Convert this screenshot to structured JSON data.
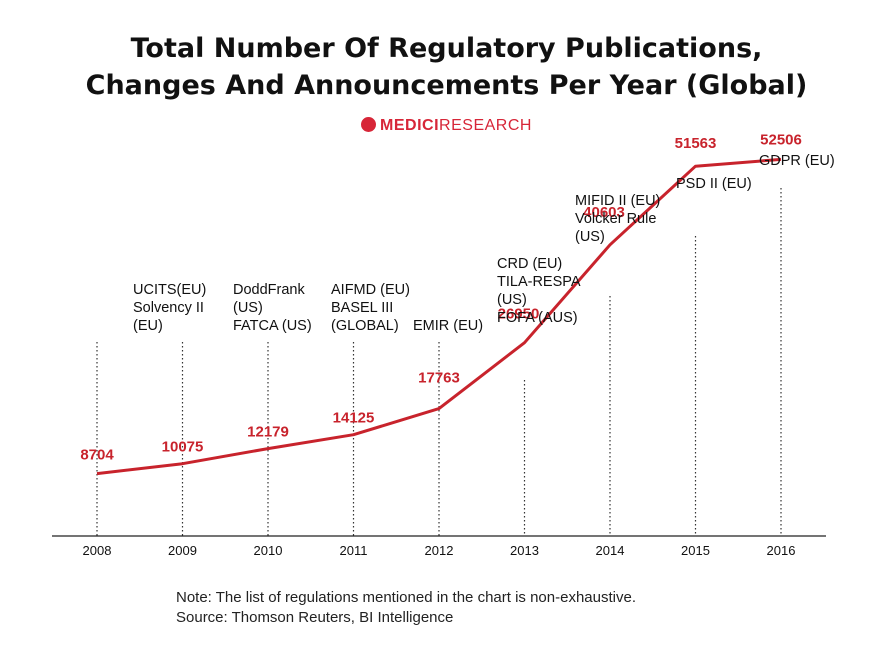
{
  "title_lines": [
    "Total Number Of Regulatory Publications,",
    "Changes And Announcements Per Year (Global)"
  ],
  "brand": {
    "part1": "MEDICI",
    "part2": "RESEARCH"
  },
  "colors": {
    "line": "#c8232c",
    "value_label": "#c8232c",
    "text": "#111111",
    "axis": "#222222"
  },
  "chart_data": {
    "type": "line",
    "title": "Total Number Of Regulatory Publications, Changes And Announcements Per Year (Global)",
    "x": [
      "2008",
      "2009",
      "2010",
      "2011",
      "2012",
      "2013",
      "2014",
      "2015",
      "2016"
    ],
    "values": [
      8704,
      10075,
      12179,
      14125,
      17763,
      26950,
      40603,
      51563,
      52506
    ],
    "data_labels": [
      "8704",
      "10075",
      "12179",
      "14125",
      "17763",
      "26950",
      "40603",
      "51563",
      "52506"
    ],
    "annotations": [
      {
        "x": "2009",
        "lines": [
          "UCITS(EU)",
          "Solvency II",
          "(EU)"
        ]
      },
      {
        "x": "2010",
        "lines": [
          "DoddFrank",
          "(US)",
          "FATCA (US)"
        ]
      },
      {
        "x": "2011",
        "lines": [
          "AIFMD (EU)",
          "BASEL III",
          "(GLOBAL)"
        ]
      },
      {
        "x": "2012",
        "lines": [
          "EMIR (EU)"
        ]
      },
      {
        "x": "2013",
        "lines": [
          "CRD (EU)",
          "TILA-RESPA",
          "(US)",
          "FOFA (AUS)"
        ]
      },
      {
        "x": "2014",
        "lines": [
          "MIFID II (EU)",
          "Volcker Rule",
          "(US)"
        ]
      },
      {
        "x": "2015",
        "lines": [
          "PSD II (EU)"
        ]
      },
      {
        "x": "2016",
        "lines": [
          "GDPR (EU)"
        ]
      }
    ],
    "xlabel": "",
    "ylabel": "",
    "ylim": [
      0,
      58000
    ],
    "grid": false,
    "legend": "none"
  },
  "notes": [
    "Note: The list of regulations mentioned in the chart is non-exhaustive.",
    "Source: Thomson Reuters, BI Intelligence"
  ]
}
